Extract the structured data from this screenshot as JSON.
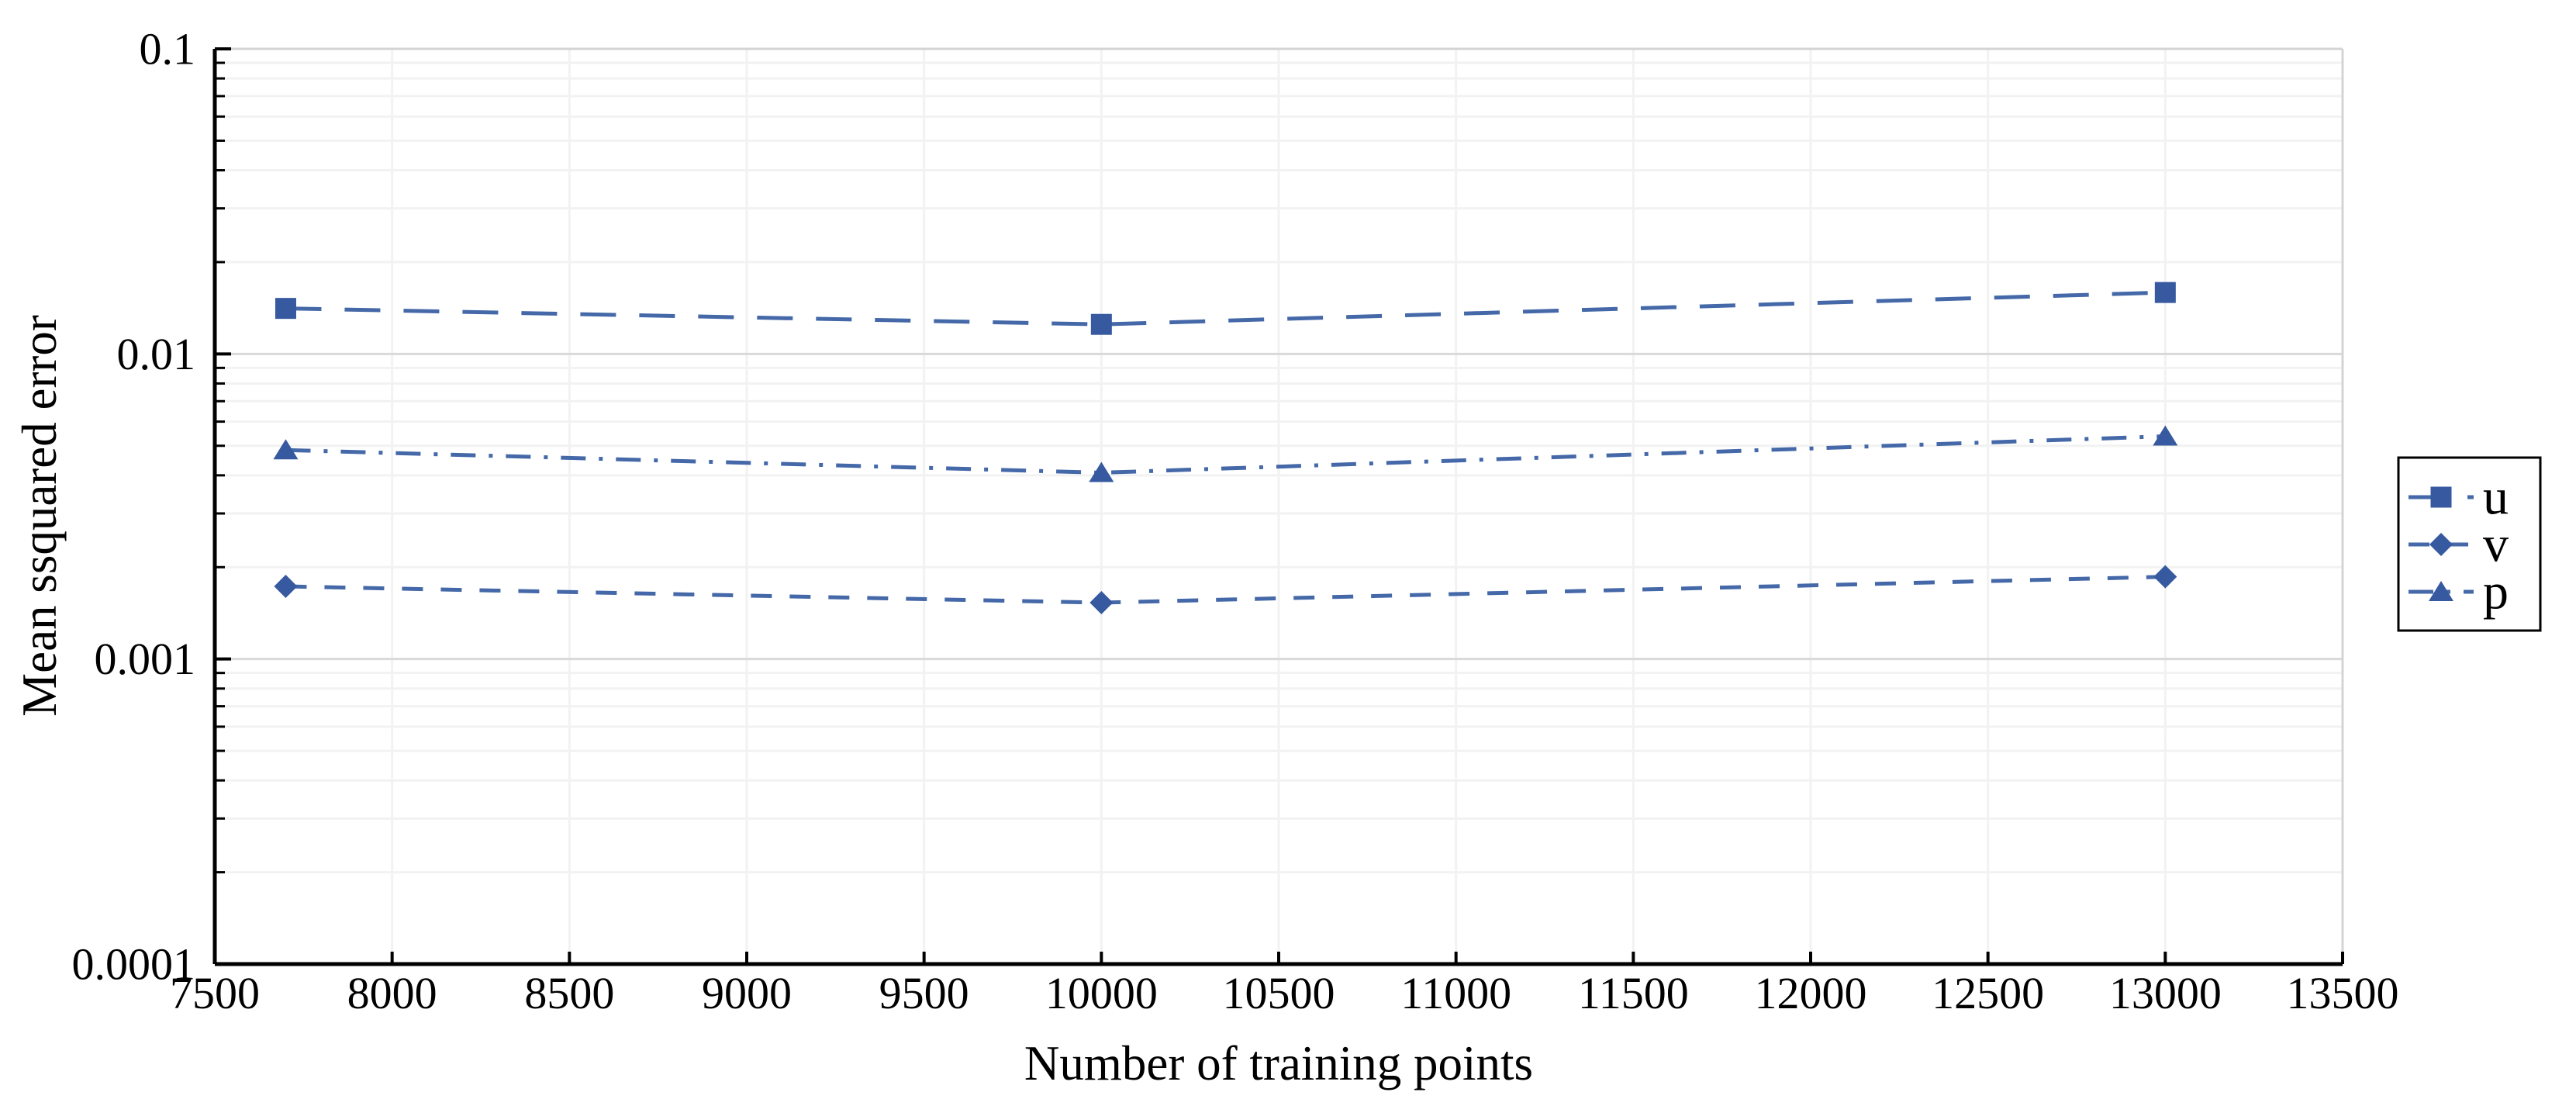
{
  "chart_data": {
    "type": "line",
    "title": "",
    "xlabel": "Number of training points",
    "ylabel": "Mean ssquared error",
    "x": [
      7700,
      10000,
      13000
    ],
    "series": [
      {
        "name": "u",
        "marker": "square",
        "dash": "long-dash",
        "values": [
          0.0141,
          0.0125,
          0.0159
        ]
      },
      {
        "name": "v",
        "marker": "diamond",
        "dash": "dash",
        "values": [
          0.00173,
          0.00153,
          0.00186
        ]
      },
      {
        "name": "p",
        "marker": "triangle",
        "dash": "dash-dot",
        "values": [
          0.00484,
          0.00408,
          0.00537
        ]
      }
    ],
    "xlim": [
      7500,
      13500
    ],
    "ylim": [
      0.0001,
      0.1
    ],
    "y_scale": "log10",
    "x_ticks": [
      7500,
      8000,
      8500,
      9000,
      9500,
      10000,
      10500,
      11000,
      11500,
      12000,
      12500,
      13000,
      13500
    ],
    "x_tick_labels": [
      "7500",
      "8000",
      "8500",
      "9000",
      "9500",
      "10000",
      "10500",
      "11000",
      "11500",
      "12000",
      "12500",
      "13000",
      "13500"
    ],
    "y_ticks": [
      0.1,
      0.01,
      0.001,
      0.0001
    ],
    "y_tick_labels": [
      "0.1",
      "0.01",
      "0.001",
      "0.0001"
    ],
    "grid": true,
    "legend": {
      "position": "outside-right",
      "entries": [
        "u",
        "v",
        "p"
      ]
    },
    "colors": {
      "series": "#36599f",
      "line": "#4468a8",
      "grid_minor": "#f2f2f2",
      "grid_major": "#d9d9d9",
      "frame_light": "#d4d4d4",
      "spine": "#000000",
      "legend_border": "#000000",
      "background": "#ffffff"
    }
  }
}
